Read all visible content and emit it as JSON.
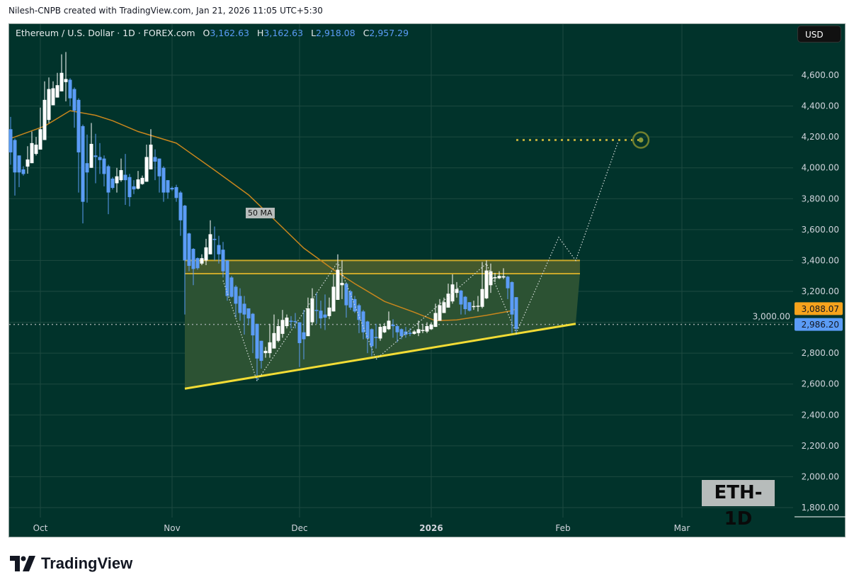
{
  "credit": "Nilesh-CNPB created with TradingView.com, Jan 21, 2026 11:05 UTC+5:30",
  "legend": {
    "symbol": "Ethereum / U.S. Dollar · 1D · FOREX.com",
    "o_label": "O",
    "o": "3,162.63",
    "h_label": "H",
    "h": "3,162.63",
    "l_label": "L",
    "l": "2,918.08",
    "c_label": "C",
    "c": "2,957.29"
  },
  "currency_button": "USD",
  "watermark_label": "ETH-1D",
  "ma_label": "50 MA",
  "brand": "TradingView",
  "colors": {
    "background": "#01332b",
    "up": "#ffffff",
    "down": "#5b9cf6",
    "ma": "#c8861d",
    "trendline": "#f2dc35",
    "band_line": "#c9a82a",
    "target": "#b7a93a",
    "ma_badge": "#f7a31c",
    "price_badge": "#5b9cf6"
  },
  "chart_data": {
    "type": "candlestick",
    "title": "Ethereum / U.S. Dollar · 1D · FOREX.com",
    "ylim": [
      1750,
      4900
    ],
    "y_ticks": [
      "4,600.00",
      "4,400.00",
      "4,200.00",
      "4,000.00",
      "3,800.00",
      "3,600.00",
      "3,400.00",
      "3,200.00",
      "3,000.00",
      "2,800.00",
      "2,600.00",
      "2,400.00",
      "2,200.00",
      "2,000.00",
      "1,800.00"
    ],
    "y_tick_values": [
      4600,
      4400,
      4200,
      4000,
      3800,
      3600,
      3400,
      3200,
      3000,
      2800,
      2600,
      2400,
      2200,
      2000,
      1800
    ],
    "x_ticks": [
      {
        "label": "Oct",
        "date": "2025-10-01"
      },
      {
        "label": "Nov",
        "date": "2025-11-01"
      },
      {
        "label": "Dec",
        "date": "2025-12-01"
      },
      {
        "label": "2026",
        "date": "2026-01-01"
      },
      {
        "label": "Feb",
        "date": "2026-02-01"
      },
      {
        "label": "Mar",
        "date": "2026-03-01"
      }
    ],
    "grid": true,
    "price_badges": [
      {
        "label": "3,088.07",
        "value": 3088.07,
        "kind": "ma"
      },
      {
        "label": "2,986.20",
        "value": 2986.2,
        "kind": "last"
      }
    ],
    "candles_ohlc": [
      [
        "2025-09-24",
        4250,
        4330,
        4020,
        4100
      ],
      [
        "2025-09-25",
        4180,
        4190,
        3820,
        3970
      ],
      [
        "2025-09-26",
        4080,
        4080,
        3875,
        3970
      ],
      [
        "2025-09-27",
        3990,
        4010,
        3950,
        3960
      ],
      [
        "2025-09-28",
        4008,
        4140,
        3962,
        4054
      ],
      [
        "2025-09-29",
        4030,
        4235,
        4030,
        4160
      ],
      [
        "2025-09-30",
        4090,
        4200,
        4080,
        4150
      ],
      [
        "2025-10-01",
        4118,
        4390,
        4118,
        4250
      ],
      [
        "2025-10-02",
        4180,
        4560,
        4180,
        4440
      ],
      [
        "2025-10-03",
        4310,
        4585,
        4290,
        4510
      ],
      [
        "2025-10-04",
        4405,
        4560,
        4405,
        4515
      ],
      [
        "2025-10-05",
        4455,
        4615,
        4455,
        4535
      ],
      [
        "2025-10-06",
        4495,
        4735,
        4495,
        4615
      ],
      [
        "2025-10-07",
        4555,
        4750,
        4430,
        4575
      ],
      [
        "2025-10-08",
        4570,
        4580,
        4400,
        4450
      ],
      [
        "2025-10-09",
        4510,
        4520,
        4260,
        4370
      ],
      [
        "2025-10-10",
        4440,
        4450,
        3840,
        4100
      ],
      [
        "2025-10-11",
        4270,
        4280,
        3640,
        3780
      ],
      [
        "2025-10-12",
        4030,
        4215,
        3775,
        3970
      ],
      [
        "2025-10-13",
        4000,
        4290,
        4000,
        4155
      ],
      [
        "2025-10-14",
        4080,
        4220,
        3900,
        4070
      ],
      [
        "2025-10-15",
        4070,
        4160,
        3960,
        4050
      ],
      [
        "2025-10-16",
        4060,
        4080,
        3880,
        3960
      ],
      [
        "2025-10-17",
        4010,
        4020,
        3700,
        3840
      ],
      [
        "2025-10-18",
        3930,
        3940,
        3860,
        3870
      ],
      [
        "2025-10-19",
        3900,
        4000,
        3840,
        3945
      ],
      [
        "2025-10-20",
        3920,
        4060,
        3910,
        3985
      ],
      [
        "2025-10-21",
        3955,
        4090,
        3760,
        3920
      ],
      [
        "2025-10-22",
        3940,
        3960,
        3750,
        3810
      ],
      [
        "2025-10-23",
        3880,
        3920,
        3830,
        3860
      ],
      [
        "2025-10-24",
        3865,
        3980,
        3860,
        3925
      ],
      [
        "2025-10-25",
        3895,
        3950,
        3890,
        3935
      ],
      [
        "2025-10-26",
        3910,
        4150,
        3910,
        4070
      ],
      [
        "2025-10-27",
        3990,
        4250,
        3990,
        4150
      ],
      [
        "2025-10-28",
        4070,
        4120,
        3920,
        4040
      ],
      [
        "2025-10-29",
        4060,
        4060,
        3840,
        3945
      ],
      [
        "2025-10-30",
        4000,
        4010,
        3780,
        3840
      ],
      [
        "2025-10-31",
        3920,
        3920,
        3800,
        3840
      ],
      [
        "2025-11-01",
        3870,
        3880,
        3850,
        3860
      ],
      [
        "2025-11-02",
        3875,
        3890,
        3780,
        3805
      ],
      [
        "2025-11-03",
        3840,
        3850,
        3560,
        3660
      ],
      [
        "2025-11-04",
        3755,
        3760,
        3050,
        3400
      ],
      [
        "2025-11-05",
        3575,
        3580,
        3330,
        3365
      ],
      [
        "2025-11-06",
        3475,
        3480,
        3240,
        3345
      ],
      [
        "2025-11-07",
        3415,
        3420,
        3340,
        3350
      ],
      [
        "2025-11-08",
        3380,
        3440,
        3370,
        3415
      ],
      [
        "2025-11-09",
        3400,
        3540,
        3370,
        3485
      ],
      [
        "2025-11-10",
        3440,
        3660,
        3440,
        3570
      ],
      [
        "2025-11-11",
        3540,
        3620,
        3400,
        3535
      ],
      [
        "2025-11-12",
        3500,
        3560,
        3380,
        3440
      ],
      [
        "2025-11-13",
        3470,
        3520,
        3290,
        3330
      ],
      [
        "2025-11-14",
        3400,
        3400,
        3140,
        3170
      ],
      [
        "2025-11-15",
        3290,
        3300,
        3160,
        3165
      ],
      [
        "2025-11-16",
        3230,
        3240,
        3030,
        3120
      ],
      [
        "2025-11-17",
        3170,
        3220,
        3010,
        3060
      ],
      [
        "2025-11-18",
        3120,
        3170,
        2920,
        3050
      ],
      [
        "2025-11-19",
        3090,
        3090,
        2980,
        3025
      ],
      [
        "2025-11-20",
        3055,
        3060,
        2800,
        2915
      ],
      [
        "2025-11-21",
        2990,
        2990,
        2620,
        2765
      ],
      [
        "2025-11-22",
        2880,
        2880,
        2700,
        2750
      ],
      [
        "2025-11-23",
        2800,
        2840,
        2770,
        2815
      ],
      [
        "2025-11-24",
        2800,
        2990,
        2770,
        2870
      ],
      [
        "2025-11-25",
        2830,
        3050,
        2830,
        2930
      ],
      [
        "2025-11-26",
        2880,
        3020,
        2870,
        2975
      ],
      [
        "2025-11-27",
        2925,
        3080,
        2900,
        3015
      ],
      [
        "2025-11-28",
        2975,
        3050,
        2960,
        3030
      ],
      [
        "2025-11-29",
        3010,
        3040,
        2960,
        3005
      ],
      [
        "2025-11-30",
        3008,
        3060,
        2960,
        3005
      ],
      [
        "2025-12-01",
        3000,
        3000,
        2710,
        2865
      ],
      [
        "2025-12-02",
        2935,
        3080,
        2760,
        2890
      ],
      [
        "2025-12-03",
        2910,
        3160,
        2910,
        3090
      ],
      [
        "2025-12-04",
        3000,
        3220,
        2980,
        3155
      ],
      [
        "2025-12-05",
        3080,
        3190,
        2990,
        3075
      ],
      [
        "2025-12-06",
        3075,
        3140,
        2960,
        3025
      ],
      [
        "2025-12-07",
        3050,
        3180,
        2950,
        3030
      ],
      [
        "2025-12-08",
        3040,
        3160,
        3020,
        3095
      ],
      [
        "2025-12-09",
        3070,
        3310,
        3070,
        3230
      ],
      [
        "2025-12-10",
        3145,
        3440,
        3145,
        3340
      ],
      [
        "2025-12-11",
        3240,
        3400,
        3150,
        3255
      ],
      [
        "2025-12-12",
        3250,
        3260,
        3030,
        3110
      ],
      [
        "2025-12-13",
        3200,
        3210,
        3080,
        3095
      ],
      [
        "2025-12-14",
        3150,
        3170,
        3060,
        3070
      ],
      [
        "2025-12-15",
        3110,
        3120,
        2930,
        3015
      ],
      [
        "2025-12-16",
        3070,
        3080,
        2890,
        2935
      ],
      [
        "2025-12-17",
        3005,
        3010,
        2800,
        2895
      ],
      [
        "2025-12-18",
        2955,
        2960,
        2780,
        2845
      ],
      [
        "2025-12-19",
        2905,
        2990,
        2830,
        2900
      ],
      [
        "2025-12-20",
        2895,
        2990,
        2880,
        2970
      ],
      [
        "2025-12-21",
        2935,
        2995,
        2930,
        2975
      ],
      [
        "2025-12-22",
        2955,
        3070,
        2950,
        3010
      ],
      [
        "2025-12-23",
        2985,
        3020,
        2900,
        2975
      ],
      [
        "2025-12-24",
        2975,
        2985,
        2870,
        2935
      ],
      [
        "2025-12-25",
        2955,
        2960,
        2890,
        2910
      ],
      [
        "2025-12-26",
        2940,
        2970,
        2900,
        2920
      ],
      [
        "2025-12-27",
        2932,
        2960,
        2910,
        2930
      ],
      [
        "2025-12-28",
        2925,
        2950,
        2920,
        2940
      ],
      [
        "2025-12-29",
        2930,
        3010,
        2910,
        2955
      ],
      [
        "2025-12-30",
        2945,
        2990,
        2930,
        2950
      ],
      [
        "2025-12-31",
        2940,
        3000,
        2930,
        2975
      ],
      [
        "2026-01-01",
        2955,
        3000,
        2950,
        2985
      ],
      [
        "2026-01-02",
        2970,
        3120,
        2970,
        3060
      ],
      [
        "2026-01-03",
        3010,
        3150,
        3010,
        3110
      ],
      [
        "2026-01-04",
        3060,
        3160,
        3060,
        3130
      ],
      [
        "2026-01-05",
        3095,
        3250,
        3095,
        3185
      ],
      [
        "2026-01-06",
        3135,
        3310,
        3120,
        3245
      ],
      [
        "2026-01-07",
        3190,
        3260,
        3160,
        3215
      ],
      [
        "2026-01-08",
        3205,
        3210,
        3050,
        3115
      ],
      [
        "2026-01-09",
        3165,
        3170,
        3050,
        3085
      ],
      [
        "2026-01-10",
        3130,
        3130,
        3070,
        3075
      ],
      [
        "2026-01-11",
        3105,
        3140,
        3080,
        3105
      ],
      [
        "2026-01-12",
        3103,
        3170,
        3070,
        3107
      ],
      [
        "2026-01-13",
        3100,
        3390,
        3090,
        3215
      ],
      [
        "2026-01-14",
        3155,
        3400,
        3150,
        3335
      ],
      [
        "2026-01-15",
        3240,
        3380,
        3190,
        3330
      ],
      [
        "2026-01-16",
        3288,
        3320,
        3260,
        3292
      ],
      [
        "2026-01-17",
        3285,
        3330,
        3280,
        3300
      ],
      [
        "2026-01-18",
        3290,
        3350,
        3280,
        3298
      ],
      [
        "2026-01-19",
        3295,
        3300,
        3150,
        3220
      ],
      [
        "2026-01-20",
        3260,
        3265,
        2930,
        3050
      ],
      [
        "2026-01-21",
        3162.63,
        3162.63,
        2918.08,
        2957.29
      ]
    ],
    "ma_50": [
      [
        "2025-09-24",
        4190
      ],
      [
        "2025-10-02",
        4270
      ],
      [
        "2025-10-08",
        4370
      ],
      [
        "2025-10-14",
        4340
      ],
      [
        "2025-10-18",
        4305
      ],
      [
        "2025-10-24",
        4235
      ],
      [
        "2025-11-02",
        4160
      ],
      [
        "2025-11-11",
        3985
      ],
      [
        "2025-11-19",
        3825
      ],
      [
        "2025-11-26",
        3640
      ],
      [
        "2025-12-02",
        3480
      ],
      [
        "2025-12-09",
        3340
      ],
      [
        "2025-12-14",
        3250
      ],
      [
        "2025-12-21",
        3135
      ],
      [
        "2025-12-28",
        3065
      ],
      [
        "2026-01-02",
        3010
      ],
      [
        "2026-01-07",
        3015
      ],
      [
        "2026-01-14",
        3045
      ],
      [
        "2026-01-20",
        3075
      ],
      [
        "2026-01-21",
        3088.07
      ]
    ],
    "last_price": 2986.2,
    "drawings": {
      "resistance_band": {
        "from": "2025-11-04",
        "to": "2026-02-05",
        "upper": 3400,
        "lower": 3315
      },
      "support_trendline": {
        "from": [
          "2025-11-04",
          2570
        ],
        "to": [
          "2026-02-04",
          2990
        ]
      },
      "projection_path": [
        [
          "2025-11-13",
          3270
        ],
        [
          "2025-11-21",
          2620
        ],
        [
          "2025-12-10",
          3390
        ],
        [
          "2025-12-19",
          2760
        ],
        [
          "2026-01-14",
          3380
        ],
        [
          "2026-01-21",
          2930
        ],
        [
          "2026-01-31",
          3550
        ],
        [
          "2026-02-04",
          3400
        ],
        [
          "2026-02-14",
          4170
        ]
      ],
      "target": {
        "from": "2026-01-21",
        "to": "2026-02-19",
        "price": 4180
      }
    }
  }
}
